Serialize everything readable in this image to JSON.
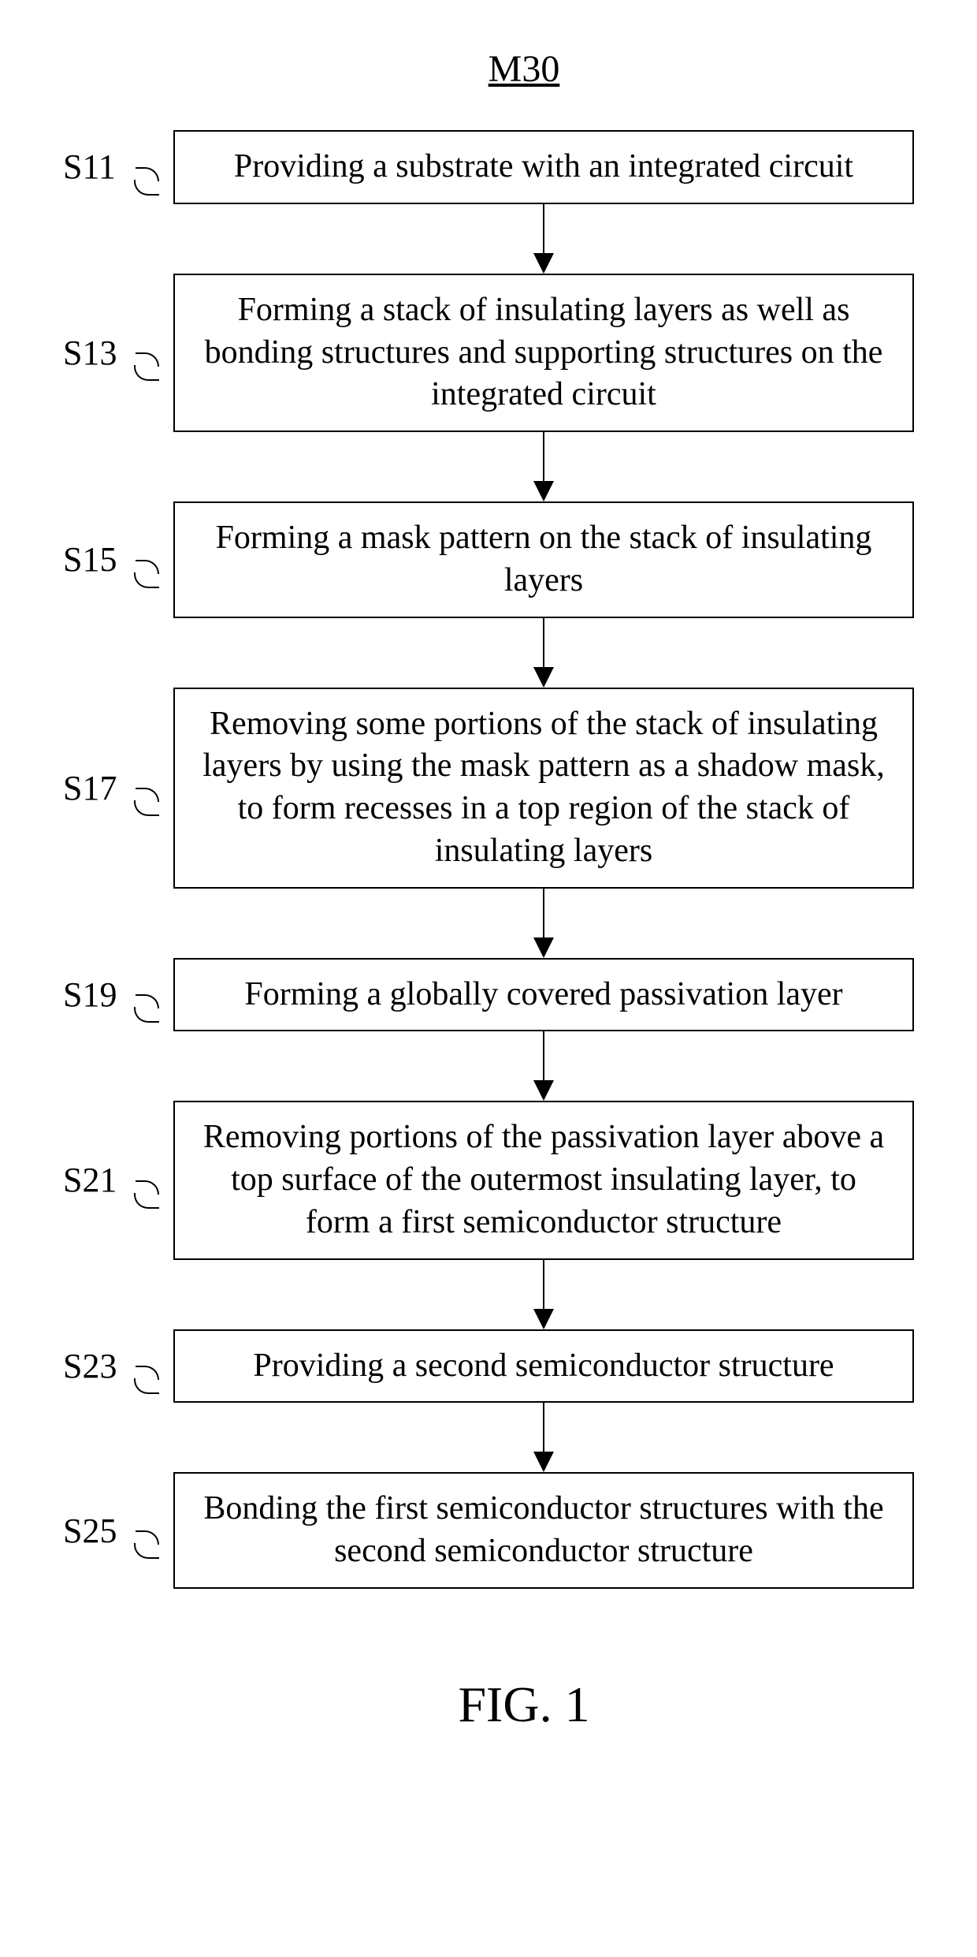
{
  "title": "M30",
  "figure_label": "FIG. 1",
  "arrow_shaft_height": 62,
  "box_border_color": "#000000",
  "background_color": "#ffffff",
  "font_family": "Times New Roman",
  "title_fontsize": 48,
  "step_label_fontsize": 44,
  "box_fontsize": 42,
  "fig_fontsize": 64,
  "steps": [
    {
      "id": "S11",
      "text": "Providing a substrate with an integrated circuit"
    },
    {
      "id": "S13",
      "text": "Forming a stack of insulating layers as well as bonding structures and supporting structures on the integrated circuit"
    },
    {
      "id": "S15",
      "text": "Forming a mask pattern on the stack of insulating layers"
    },
    {
      "id": "S17",
      "text": "Removing some portions of the stack of insulating layers by using the mask pattern as a shadow mask, to form recesses in a top region of the stack of insulating layers"
    },
    {
      "id": "S19",
      "text": "Forming a globally covered passivation layer"
    },
    {
      "id": "S21",
      "text": "Removing portions of the passivation layer above a top surface of the outermost insulating layer, to form a first semiconductor structure"
    },
    {
      "id": "S23",
      "text": "Providing a second semiconductor structure"
    },
    {
      "id": "S25",
      "text": "Bonding the first semiconductor structures with the second semiconductor structure"
    }
  ]
}
